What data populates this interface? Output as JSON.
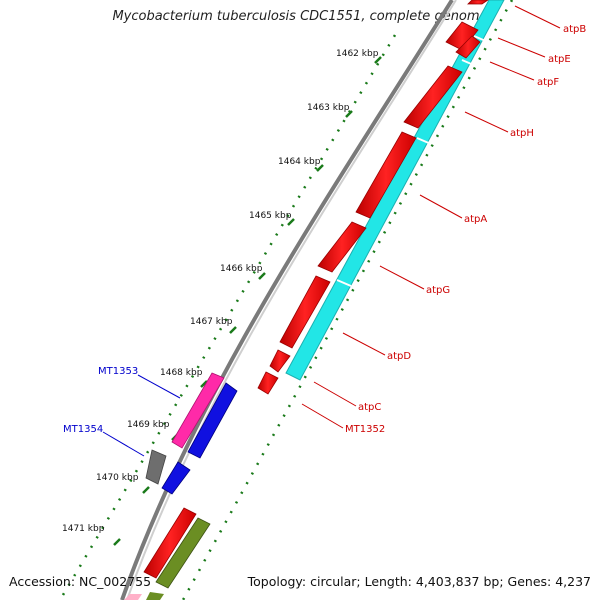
{
  "title": "Mycobacterium tuberculosis CDC1551, complete genome",
  "accession": "Accession: NC_002755",
  "topology": "Topology: circular; Length: 4,403,837 bp; Genes: 4,237",
  "ticks": [
    "1462 kbp",
    "1463 kbp",
    "1464 kbp",
    "1465 kbp",
    "1466 kbp",
    "1467 kbp",
    "1468 kbp",
    "1469 kbp",
    "1470 kbp",
    "1471 kbp"
  ],
  "genes_right": [
    "atpB",
    "atpE",
    "atpF",
    "atpH",
    "atpA",
    "atpG",
    "atpD",
    "atpC",
    "MT1352"
  ],
  "genes_left": [
    "MT1353",
    "MT1354"
  ],
  "colors": {
    "tick": "#1a7a1a",
    "right_label": "#cc0000",
    "left_label": "#0000cc",
    "red": "#ee1111",
    "cyan": "#22e6e6",
    "magenta": "#ff2aa8",
    "blue": "#1010e0",
    "gray": "#6e6e6e",
    "olive": "#6b8e23",
    "pink": "#ffb0c8",
    "backbone": "#7a7a7a"
  }
}
